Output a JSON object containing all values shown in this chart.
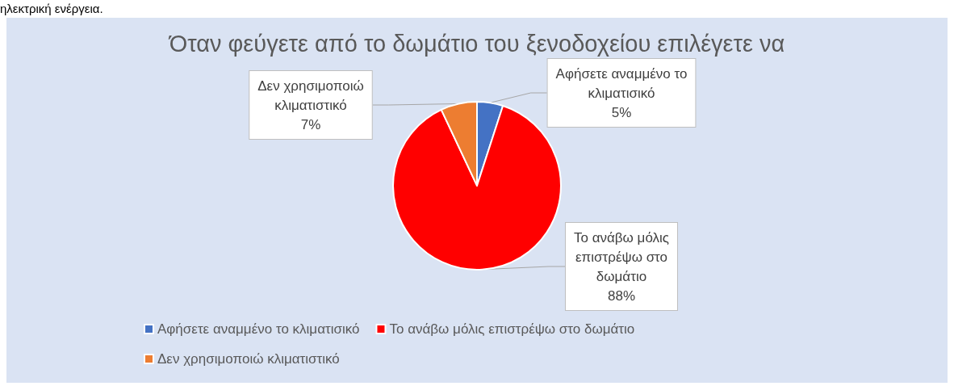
{
  "chart_data": {
    "type": "pie",
    "title": "Όταν φεύγετε από το δωμάτιο του ξενοδοχείου επιλέγετε να",
    "annotations": [
      "ηλεκτρική ενέργεια."
    ],
    "categories": [
      "Αφήσετε αναμμένο το κλιματισικό",
      "Το ανάβω μόλις επιστρέψω στο δωμάτιο",
      "Δεν χρησιμοποιώ κλιματιστικό"
    ],
    "values": [
      5,
      88,
      7
    ],
    "colors": [
      "#4472c4",
      "#ff0000",
      "#ed7d31"
    ],
    "value_labels": [
      "5%",
      "88%",
      "7%"
    ],
    "legend": "bottom"
  }
}
